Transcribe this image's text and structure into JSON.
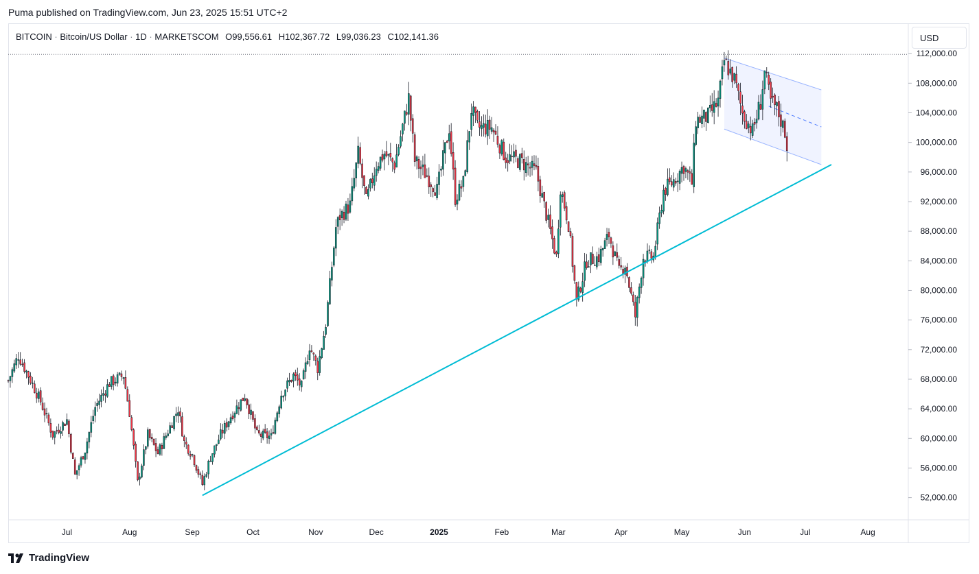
{
  "header": {
    "publish_line": "Puma published on TradingView.com, Jun 23, 2025 15:51 UTC+2"
  },
  "legend": {
    "symbol": "BITCOIN",
    "name": "Bitcoin/US Dollar",
    "interval": "1D",
    "exchange": "MARKETSCOM",
    "open": "O99,556.61",
    "high": "H102,367.72",
    "low": "L99,036.23",
    "close": "C102,141.36"
  },
  "currency_button": "USD",
  "footer": {
    "brand": "TradingView"
  },
  "colors": {
    "up": "#089981",
    "down": "#f23645",
    "trendline": "#00bcd4",
    "channel": "#2962ff",
    "channel_fill": "#eef2ff",
    "grid_text": "#131722"
  },
  "chart_data": {
    "type": "candlestick",
    "symbol": "BITCOIN",
    "ylim": [
      49000,
      116000
    ],
    "y_ticks": [
      "112,000.00",
      "108,000.00",
      "104,000.00",
      "100,000.00",
      "96,000.00",
      "92,000.00",
      "88,000.00",
      "84,000.00",
      "80,000.00",
      "76,000.00",
      "72,000.00",
      "68,000.00",
      "64,000.00",
      "60,000.00",
      "56,000.00",
      "52,000.00"
    ],
    "x_ticks": [
      {
        "label": "Jul",
        "date": "2024-07-01",
        "bold": false
      },
      {
        "label": "Aug",
        "date": "2024-08-01",
        "bold": false
      },
      {
        "label": "Sep",
        "date": "2024-09-01",
        "bold": false
      },
      {
        "label": "Oct",
        "date": "2024-10-01",
        "bold": false
      },
      {
        "label": "Nov",
        "date": "2024-11-01",
        "bold": false
      },
      {
        "label": "Dec",
        "date": "2024-12-01",
        "bold": false
      },
      {
        "label": "2025",
        "date": "2025-01-01",
        "bold": true
      },
      {
        "label": "Feb",
        "date": "2025-02-01",
        "bold": false
      },
      {
        "label": "Mar",
        "date": "2025-03-01",
        "bold": false
      },
      {
        "label": "Apr",
        "date": "2025-04-01",
        "bold": false
      },
      {
        "label": "May",
        "date": "2025-05-01",
        "bold": false
      },
      {
        "label": "Jun",
        "date": "2025-06-01",
        "bold": false
      },
      {
        "label": "Jul",
        "date": "2025-07-01",
        "bold": false
      },
      {
        "label": "Aug",
        "date": "2025-08-01",
        "bold": false
      }
    ],
    "x_range": [
      "2024-06-02",
      "2025-08-21"
    ],
    "price_anchors": [
      [
        "2024-06-02",
        67800
      ],
      [
        "2024-06-07",
        71200
      ],
      [
        "2024-06-12",
        68500
      ],
      [
        "2024-06-18",
        65000
      ],
      [
        "2024-06-24",
        60500
      ],
      [
        "2024-07-01",
        62500
      ],
      [
        "2024-07-05",
        55000
      ],
      [
        "2024-07-10",
        58500
      ],
      [
        "2024-07-15",
        64200
      ],
      [
        "2024-07-22",
        67500
      ],
      [
        "2024-07-29",
        68500
      ],
      [
        "2024-08-01",
        63500
      ],
      [
        "2024-08-05",
        54000
      ],
      [
        "2024-08-10",
        60500
      ],
      [
        "2024-08-15",
        58000
      ],
      [
        "2024-08-20",
        61000
      ],
      [
        "2024-08-25",
        64000
      ],
      [
        "2024-08-28",
        59500
      ],
      [
        "2024-09-01",
        57800
      ],
      [
        "2024-09-06",
        53800
      ],
      [
        "2024-09-10",
        57500
      ],
      [
        "2024-09-15",
        60500
      ],
      [
        "2024-09-20",
        63000
      ],
      [
        "2024-09-27",
        65800
      ],
      [
        "2024-10-03",
        60500
      ],
      [
        "2024-10-10",
        60200
      ],
      [
        "2024-10-15",
        66000
      ],
      [
        "2024-10-21",
        68500
      ],
      [
        "2024-10-25",
        67000
      ],
      [
        "2024-10-29",
        72500
      ],
      [
        "2024-11-02",
        69500
      ],
      [
        "2024-11-06",
        75500
      ],
      [
        "2024-11-11",
        88500
      ],
      [
        "2024-11-13",
        90000
      ],
      [
        "2024-11-18",
        91500
      ],
      [
        "2024-11-22",
        98500
      ],
      [
        "2024-11-26",
        92000
      ],
      [
        "2024-12-01",
        97000
      ],
      [
        "2024-12-05",
        98500
      ],
      [
        "2024-12-10",
        97000
      ],
      [
        "2024-12-17",
        106000
      ],
      [
        "2024-12-20",
        97500
      ],
      [
        "2024-12-26",
        95500
      ],
      [
        "2024-12-31",
        93500
      ],
      [
        "2025-01-06",
        102000
      ],
      [
        "2025-01-09",
        92500
      ],
      [
        "2025-01-13",
        94500
      ],
      [
        "2025-01-17",
        104500
      ],
      [
        "2025-01-20",
        102000
      ],
      [
        "2025-01-27",
        102000
      ],
      [
        "2025-02-03",
        98000
      ],
      [
        "2025-02-10",
        97500
      ],
      [
        "2025-02-18",
        96000
      ],
      [
        "2025-02-25",
        88000
      ],
      [
        "2025-02-28",
        84500
      ],
      [
        "2025-03-02",
        94000
      ],
      [
        "2025-03-06",
        89000
      ],
      [
        "2025-03-10",
        78500
      ],
      [
        "2025-03-15",
        84000
      ],
      [
        "2025-03-21",
        84500
      ],
      [
        "2025-03-26",
        87500
      ],
      [
        "2025-03-31",
        82500
      ],
      [
        "2025-04-03",
        83500
      ],
      [
        "2025-04-08",
        76500
      ],
      [
        "2025-04-12",
        84500
      ],
      [
        "2025-04-17",
        84500
      ],
      [
        "2025-04-22",
        93500
      ],
      [
        "2025-04-26",
        94500
      ],
      [
        "2025-05-02",
        96800
      ],
      [
        "2025-05-06",
        94500
      ],
      [
        "2025-05-08",
        103000
      ],
      [
        "2025-05-14",
        103500
      ],
      [
        "2025-05-19",
        105500
      ],
      [
        "2025-05-22",
        111000
      ],
      [
        "2025-05-27",
        108500
      ],
      [
        "2025-05-31",
        104000
      ],
      [
        "2025-06-05",
        101500
      ],
      [
        "2025-06-09",
        105500
      ],
      [
        "2025-06-11",
        109500
      ],
      [
        "2025-06-14",
        105500
      ],
      [
        "2025-06-17",
        104500
      ],
      [
        "2025-06-21",
        101500
      ],
      [
        "2025-06-22",
        99500
      ]
    ],
    "trendline": {
      "from": [
        "2024-09-06",
        52300
      ],
      "to": [
        "2025-07-14",
        97000
      ]
    },
    "channel": {
      "upper": {
        "from": [
          "2025-05-22",
          111400
        ],
        "to": [
          "2025-07-09",
          107100
        ]
      },
      "lower": {
        "from": [
          "2025-05-22",
          101800
        ],
        "to": [
          "2025-07-09",
          97000
        ]
      },
      "mid": {
        "from": [
          "2025-06-13",
          104900
        ],
        "to": [
          "2025-07-09",
          102100
        ]
      }
    },
    "highlight_level": 111900
  }
}
